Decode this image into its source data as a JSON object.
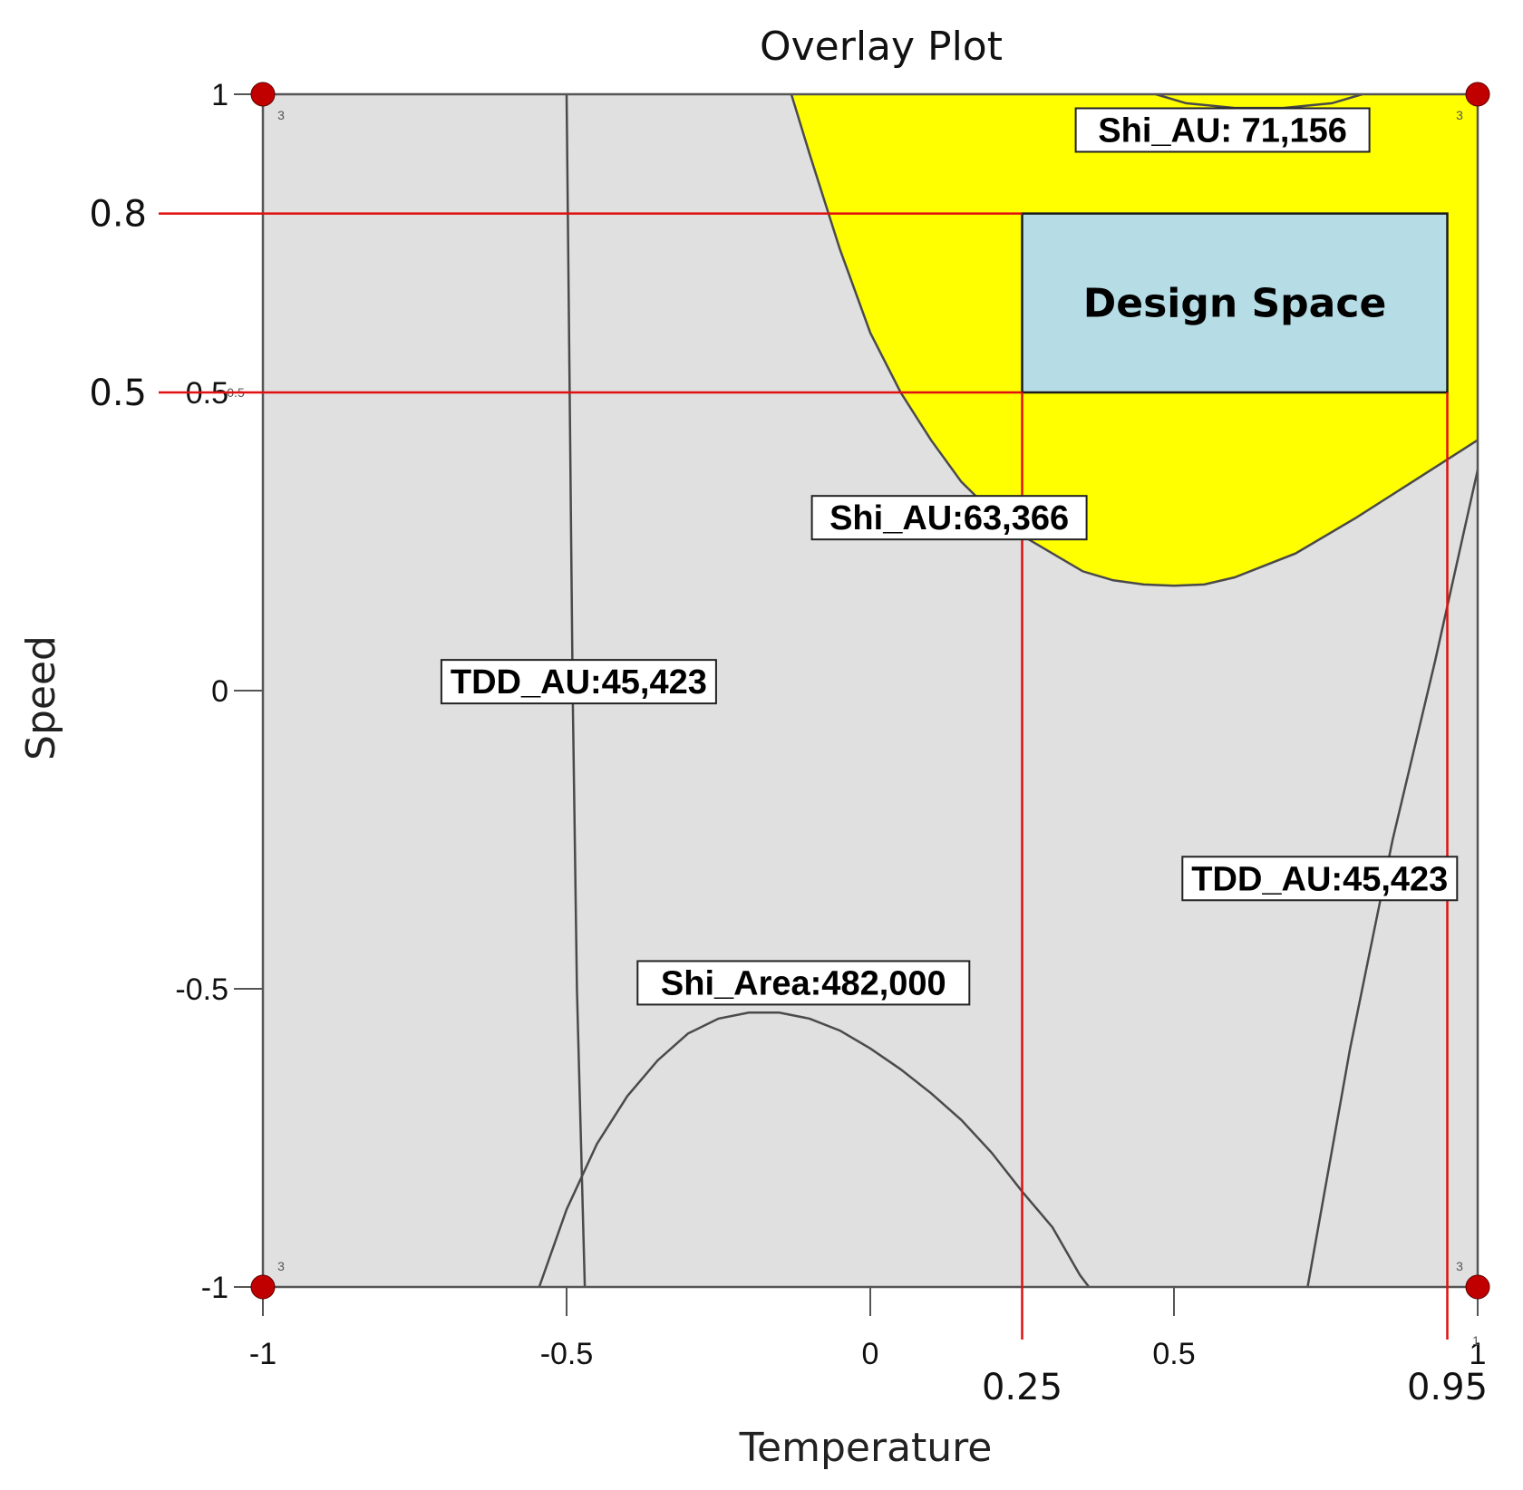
{
  "chart_data": {
    "type": "contour",
    "title": "Overlay Plot",
    "xlabel": "Temperature",
    "ylabel": "Speed",
    "xlim": [
      -1,
      1
    ],
    "ylim": [
      -1,
      1
    ],
    "x_ticks": [
      "-1",
      "-0.5",
      "0",
      "0.5",
      "1"
    ],
    "y_ticks": [
      "-1",
      "-0.5",
      "0",
      "0.5",
      "1"
    ],
    "x_extra_ticks": [
      "0.25",
      "0.95"
    ],
    "y_extra_ticks": [
      "0.8",
      "0.5"
    ],
    "inner_tick_label": "0.5",
    "design_points": [
      {
        "x": -1,
        "y": 1,
        "count": "3"
      },
      {
        "x": 1,
        "y": 1,
        "count": "3"
      },
      {
        "x": -1,
        "y": -1,
        "count": "3"
      },
      {
        "x": 1,
        "y": -1,
        "count": "3"
      }
    ],
    "corner_mark": "1",
    "colors": {
      "background": "#e0e0e0",
      "feasible": "#ffff00",
      "design_space": "#b6dde6",
      "reference": "#e01010",
      "point": "#c00000",
      "contour": "#4a4a4a"
    },
    "feasible_region": [
      [
        -0.13,
        1.0
      ],
      [
        -0.1,
        0.9
      ],
      [
        -0.05,
        0.74
      ],
      [
        0.0,
        0.6
      ],
      [
        0.05,
        0.5
      ],
      [
        0.1,
        0.42
      ],
      [
        0.15,
        0.35
      ],
      [
        0.2,
        0.3
      ],
      [
        0.25,
        0.26
      ],
      [
        0.3,
        0.23
      ],
      [
        0.35,
        0.2
      ],
      [
        0.4,
        0.185
      ],
      [
        0.45,
        0.178
      ],
      [
        0.5,
        0.176
      ],
      [
        0.55,
        0.178
      ],
      [
        0.6,
        0.19
      ],
      [
        0.7,
        0.23
      ],
      [
        0.8,
        0.29
      ],
      [
        0.9,
        0.355
      ],
      [
        1.0,
        0.42
      ],
      [
        1.0,
        1.0
      ]
    ],
    "design_space": {
      "label": "Design Space",
      "x": [
        0.25,
        0.95
      ],
      "y": [
        0.5,
        0.8
      ]
    },
    "reference_lines": {
      "x": [
        0.25,
        0.95
      ],
      "y": [
        0.8,
        0.5
      ]
    },
    "contours": [
      {
        "label": "Shi_AU: 71,156",
        "label_at": [
          0.58,
          0.94
        ],
        "points": [
          [
            0.47,
            1.0
          ],
          [
            0.52,
            0.985
          ],
          [
            0.6,
            0.977
          ],
          [
            0.68,
            0.977
          ],
          [
            0.76,
            0.985
          ],
          [
            0.81,
            1.0
          ]
        ]
      },
      {
        "label": "Shi_AU:63,366",
        "label_at": [
          0.13,
          0.29
        ],
        "points": [
          [
            -0.13,
            1.0
          ],
          [
            -0.1,
            0.9
          ],
          [
            -0.05,
            0.74
          ],
          [
            0.0,
            0.6
          ],
          [
            0.05,
            0.5
          ],
          [
            0.1,
            0.42
          ],
          [
            0.15,
            0.35
          ],
          [
            0.2,
            0.3
          ],
          [
            0.25,
            0.26
          ],
          [
            0.3,
            0.23
          ],
          [
            0.35,
            0.2
          ],
          [
            0.4,
            0.185
          ],
          [
            0.45,
            0.178
          ],
          [
            0.5,
            0.176
          ],
          [
            0.55,
            0.178
          ],
          [
            0.6,
            0.19
          ],
          [
            0.7,
            0.23
          ],
          [
            0.8,
            0.29
          ],
          [
            0.9,
            0.355
          ],
          [
            1.0,
            0.42
          ]
        ]
      },
      {
        "label": "TDD_AU:45,423",
        "label_at": [
          -0.48,
          0.015
        ],
        "points": [
          [
            -0.5,
            1.0
          ],
          [
            -0.495,
            0.5
          ],
          [
            -0.49,
            0.0
          ],
          [
            -0.483,
            -0.5
          ],
          [
            -0.47,
            -1.0
          ]
        ]
      },
      {
        "label": "TDD_AU:45,423",
        "label_at": [
          0.74,
          -0.315
        ],
        "points": [
          [
            0.72,
            -1.0
          ],
          [
            0.79,
            -0.6
          ],
          [
            0.86,
            -0.25
          ],
          [
            0.93,
            0.05
          ],
          [
            1.0,
            0.37
          ]
        ]
      },
      {
        "label": "Shi_Area:482,000",
        "label_at": [
          -0.11,
          -0.49
        ],
        "points": [
          [
            -0.545,
            -1.0
          ],
          [
            -0.5,
            -0.87
          ],
          [
            -0.45,
            -0.76
          ],
          [
            -0.4,
            -0.68
          ],
          [
            -0.35,
            -0.62
          ],
          [
            -0.3,
            -0.575
          ],
          [
            -0.25,
            -0.55
          ],
          [
            -0.2,
            -0.54
          ],
          [
            -0.15,
            -0.54
          ],
          [
            -0.1,
            -0.55
          ],
          [
            -0.05,
            -0.57
          ],
          [
            0.0,
            -0.6
          ],
          [
            0.05,
            -0.635
          ],
          [
            0.1,
            -0.675
          ],
          [
            0.15,
            -0.72
          ],
          [
            0.2,
            -0.775
          ],
          [
            0.25,
            -0.84
          ],
          [
            0.3,
            -0.9
          ],
          [
            0.345,
            -0.98
          ],
          [
            0.36,
            -1.0
          ]
        ]
      }
    ]
  }
}
